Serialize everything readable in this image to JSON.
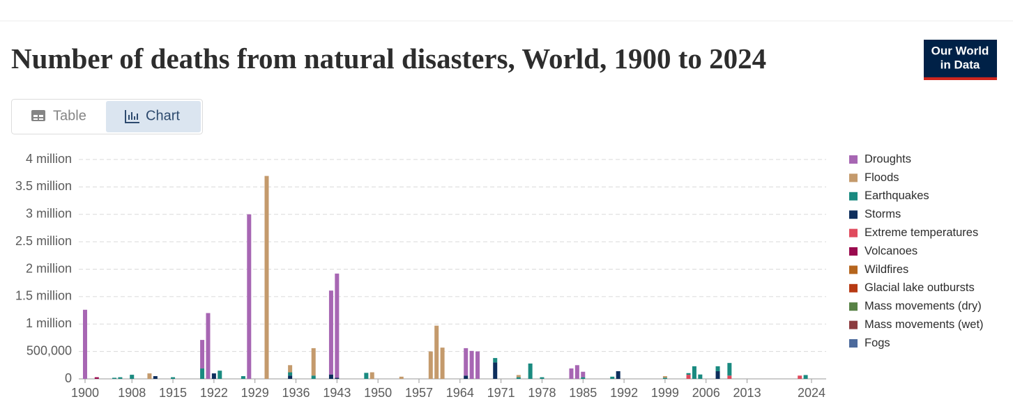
{
  "logo": [
    "Our World",
    "in Data"
  ],
  "tabs": [
    "Table",
    "Chart"
  ],
  "chart_data": {
    "type": "stacked-bar",
    "title": "Number of deaths from natural disasters, World, 1900 to 2024",
    "x": [
      1900,
      1902,
      1905,
      1906,
      1908,
      1911,
      1912,
      1915,
      1920,
      1921,
      1922,
      1923,
      1927,
      1928,
      1931,
      1935,
      1939,
      1942,
      1943,
      1948,
      1949,
      1954,
      1959,
      1960,
      1961,
      1965,
      1966,
      1967,
      1970,
      1974,
      1976,
      1978,
      1983,
      1984,
      1985,
      1990,
      1991,
      1999,
      2003,
      2004,
      2005,
      2008,
      2010,
      2022,
      2023
    ],
    "xlim": [
      1900,
      2024
    ],
    "xticks": [
      1900,
      1908,
      1915,
      1922,
      1929,
      1936,
      1943,
      1950,
      1957,
      1964,
      1971,
      1978,
      1985,
      1992,
      1999,
      2006,
      2013,
      2024
    ],
    "ylim": [
      0,
      4000000
    ],
    "yticks": [
      0,
      {
        "value": 500000,
        "label": "500,000"
      },
      {
        "value": 1000000,
        "label": "1 million"
      },
      {
        "value": 1500000,
        "label": "1.5 million"
      },
      {
        "value": 2000000,
        "label": "2 million"
      },
      {
        "value": 2500000,
        "label": "2.5 million"
      },
      {
        "value": 3000000,
        "label": "3 million"
      },
      {
        "value": 3500000,
        "label": "3.5 million"
      },
      {
        "value": 4000000,
        "label": "4 million"
      }
    ],
    "grid": true,
    "legend": "right",
    "series": [
      {
        "name": "Droughts",
        "color": "#a766b3",
        "values": [
          1260000,
          0,
          0,
          0,
          0,
          0,
          0,
          0,
          520000,
          1200000,
          0,
          0,
          0,
          3000000,
          0,
          0,
          0,
          1530000,
          1900000,
          0,
          0,
          0,
          0,
          0,
          0,
          500000,
          510000,
          500000,
          0,
          0,
          0,
          0,
          190000,
          250000,
          100000,
          0,
          0,
          0,
          0,
          0,
          0,
          0,
          0,
          0,
          0
        ]
      },
      {
        "name": "Floods",
        "color": "#c49a6c",
        "values": [
          0,
          0,
          0,
          0,
          0,
          100000,
          0,
          0,
          0,
          0,
          0,
          0,
          0,
          0,
          3700000,
          130000,
          500000,
          0,
          0,
          0,
          120000,
          40000,
          500000,
          970000,
          570000,
          0,
          0,
          0,
          0,
          40000,
          0,
          0,
          0,
          0,
          0,
          0,
          0,
          30000,
          0,
          0,
          0,
          0,
          0,
          0,
          0
        ]
      },
      {
        "name": "Earthquakes",
        "color": "#1a8a80",
        "values": [
          0,
          0,
          20000,
          30000,
          75000,
          0,
          0,
          30000,
          190000,
          0,
          0,
          150000,
          50000,
          0,
          0,
          60000,
          60000,
          0,
          0,
          110000,
          0,
          0,
          0,
          0,
          0,
          0,
          0,
          0,
          80000,
          30000,
          280000,
          30000,
          0,
          0,
          30000,
          40000,
          0,
          20000,
          30000,
          230000,
          80000,
          90000,
          230000,
          0,
          70000
        ]
      },
      {
        "name": "Storms",
        "color": "#0d2e5c",
        "values": [
          0,
          0,
          0,
          0,
          0,
          0,
          50000,
          0,
          0,
          0,
          100000,
          0,
          0,
          0,
          0,
          60000,
          0,
          80000,
          20000,
          0,
          0,
          0,
          0,
          0,
          0,
          60000,
          0,
          0,
          300000,
          0,
          0,
          0,
          0,
          0,
          0,
          0,
          140000,
          0,
          0,
          0,
          0,
          140000,
          0,
          0,
          0
        ]
      },
      {
        "name": "Extreme temperatures",
        "color": "#e04a5d",
        "values": [
          0,
          0,
          0,
          0,
          0,
          0,
          0,
          0,
          0,
          0,
          0,
          0,
          0,
          0,
          0,
          0,
          0,
          0,
          0,
          0,
          0,
          0,
          0,
          0,
          0,
          0,
          0,
          0,
          0,
          0,
          0,
          0,
          0,
          0,
          0,
          0,
          0,
          0,
          75000,
          0,
          0,
          0,
          60000,
          60000,
          0
        ]
      },
      {
        "name": "Volcanoes",
        "color": "#9a0a4e",
        "values": [
          0,
          30000,
          0,
          0,
          0,
          0,
          0,
          0,
          0,
          0,
          0,
          0,
          0,
          0,
          0,
          0,
          0,
          0,
          0,
          0,
          0,
          0,
          0,
          0,
          0,
          0,
          0,
          0,
          0,
          0,
          0,
          0,
          0,
          0,
          0,
          0,
          0,
          0,
          0,
          0,
          0,
          0,
          0,
          0,
          0
        ]
      },
      {
        "name": "Wildfires",
        "color": "#b5651d",
        "values": [
          0,
          0,
          0,
          0,
          0,
          0,
          0,
          0,
          0,
          0,
          0,
          0,
          0,
          0,
          0,
          0,
          0,
          0,
          0,
          0,
          0,
          0,
          0,
          0,
          0,
          0,
          0,
          0,
          0,
          0,
          0,
          0,
          0,
          0,
          0,
          0,
          0,
          0,
          0,
          0,
          0,
          0,
          0,
          0,
          0
        ]
      },
      {
        "name": "Glacial lake outbursts",
        "color": "#b73a13",
        "values": [
          0,
          0,
          0,
          0,
          0,
          0,
          0,
          0,
          0,
          0,
          0,
          0,
          0,
          0,
          0,
          0,
          0,
          0,
          0,
          0,
          0,
          0,
          0,
          0,
          0,
          0,
          0,
          0,
          0,
          0,
          0,
          0,
          0,
          0,
          0,
          0,
          0,
          0,
          0,
          0,
          0,
          0,
          0,
          0,
          0
        ]
      },
      {
        "name": "Mass movements (dry)",
        "color": "#578145",
        "values": [
          0,
          0,
          0,
          0,
          0,
          0,
          0,
          0,
          0,
          0,
          0,
          0,
          0,
          0,
          0,
          0,
          0,
          0,
          0,
          0,
          0,
          0,
          0,
          0,
          0,
          0,
          0,
          0,
          0,
          0,
          0,
          0,
          0,
          0,
          0,
          0,
          0,
          0,
          0,
          0,
          0,
          0,
          0,
          0,
          0
        ]
      },
      {
        "name": "Mass movements (wet)",
        "color": "#8c3b3f",
        "values": [
          0,
          0,
          0,
          0,
          0,
          0,
          0,
          0,
          0,
          0,
          0,
          0,
          0,
          0,
          0,
          0,
          0,
          0,
          0,
          0,
          0,
          0,
          0,
          0,
          0,
          0,
          0,
          0,
          0,
          0,
          0,
          0,
          0,
          0,
          0,
          0,
          0,
          0,
          0,
          0,
          0,
          0,
          0,
          0,
          0
        ]
      },
      {
        "name": "Fogs",
        "color": "#4c6a9c",
        "values": [
          0,
          0,
          0,
          0,
          0,
          0,
          0,
          0,
          0,
          0,
          0,
          0,
          0,
          0,
          0,
          0,
          0,
          0,
          0,
          0,
          0,
          0,
          0,
          0,
          0,
          0,
          0,
          0,
          0,
          0,
          0,
          0,
          0,
          0,
          0,
          0,
          0,
          0,
          0,
          0,
          0,
          0,
          0,
          0,
          0
        ]
      }
    ]
  }
}
